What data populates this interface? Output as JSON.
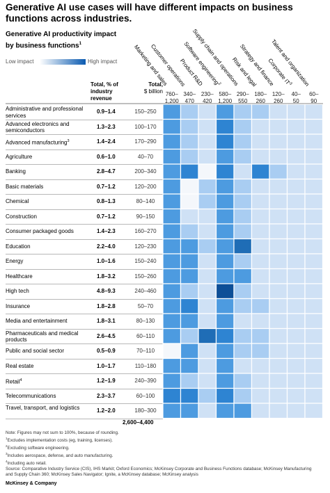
{
  "title": "Generative AI use cases will have different impacts on business functions across industries.",
  "subtitle": "Generative AI productivity impact by business functions",
  "subtitle_note_mark": "1",
  "legend": {
    "low": "Low impact",
    "high": "High impact",
    "low_color": "#ffffff",
    "high_color": "#0a5ab0"
  },
  "headers": {
    "total_revenue_title": "Total, % of industry revenue",
    "total_billion_title": "Total,",
    "total_billion_unit": "$ billion"
  },
  "total_billion_sum": "2,600–4,400",
  "chart_data": {
    "type": "heatmap",
    "title": "Generative AI productivity impact by business functions",
    "functions": [
      {
        "name": "Marketing and sales",
        "value_range": "760–1,200"
      },
      {
        "name": "Customer operations",
        "value_range": "340–470"
      },
      {
        "name": "Product R&D",
        "value_range": "230–420"
      },
      {
        "name": "Software engineering",
        "value_range": "580–1,200"
      },
      {
        "name": "Supply chain and operations",
        "value_range": "290–550"
      },
      {
        "name": "Risk and legal",
        "value_range": "180–260"
      },
      {
        "name": "Strategy and finance",
        "value_range": "120–260"
      },
      {
        "name": "Corporate IT",
        "value_range": "40–50"
      },
      {
        "name": "Talent and organization",
        "value_range": "60–90"
      }
    ],
    "function_marks": {
      "Corporate IT": "3",
      "Software engineering": "2"
    },
    "industries": [
      {
        "name": "Administrative and professional services",
        "revenue_pct": "0.9–1.4",
        "billion": "150–250",
        "impact": [
          3,
          2,
          1,
          3,
          2,
          2,
          1,
          1,
          1
        ]
      },
      {
        "name": "Advanced electronics and semiconductors",
        "revenue_pct": "1.3–2.3",
        "billion": "100–170",
        "impact": [
          3,
          2,
          1,
          4,
          2,
          1,
          1,
          1,
          1
        ]
      },
      {
        "name": "Advanced manufacturing",
        "mark": "3",
        "revenue_pct": "1.4–2.4",
        "billion": "170–290",
        "impact": [
          3,
          2,
          1,
          4,
          2,
          1,
          1,
          1,
          1
        ]
      },
      {
        "name": "Agriculture",
        "revenue_pct": "0.6–1.0",
        "billion": "40–70",
        "impact": [
          3,
          2,
          1,
          3,
          2,
          1,
          1,
          1,
          1
        ]
      },
      {
        "name": "Banking",
        "revenue_pct": "2.8–4.7",
        "billion": "200–340",
        "impact": [
          3,
          4,
          0,
          4,
          1,
          4,
          2,
          1,
          1
        ]
      },
      {
        "name": "Basic materials",
        "revenue_pct": "0.7–1.2",
        "billion": "120–200",
        "impact": [
          3,
          0,
          2,
          3,
          2,
          1,
          1,
          1,
          1
        ]
      },
      {
        "name": "Chemical",
        "revenue_pct": "0.8–1.3",
        "billion": "80–140",
        "impact": [
          3,
          0,
          2,
          3,
          2,
          1,
          1,
          1,
          1
        ]
      },
      {
        "name": "Construction",
        "revenue_pct": "0.7–1.2",
        "billion": "90–150",
        "impact": [
          3,
          1,
          1,
          3,
          2,
          1,
          1,
          1,
          1
        ]
      },
      {
        "name": "Consumer packaged goods",
        "revenue_pct": "1.4–2.3",
        "billion": "160–270",
        "impact": [
          3,
          2,
          1,
          3,
          2,
          1,
          1,
          1,
          1
        ]
      },
      {
        "name": "Education",
        "revenue_pct": "2.2–4.0",
        "billion": "120–230",
        "impact": [
          3,
          3,
          2,
          3,
          5,
          1,
          1,
          1,
          1
        ]
      },
      {
        "name": "Energy",
        "revenue_pct": "1.0–1.6",
        "billion": "150–240",
        "impact": [
          3,
          3,
          1,
          3,
          2,
          1,
          1,
          1,
          1
        ]
      },
      {
        "name": "Healthcare",
        "revenue_pct": "1.8–3.2",
        "billion": "150–260",
        "impact": [
          3,
          3,
          1,
          3,
          3,
          1,
          1,
          1,
          1
        ]
      },
      {
        "name": "High tech",
        "revenue_pct": "4.8–9.3",
        "billion": "240–460",
        "impact": [
          3,
          2,
          1,
          6,
          2,
          1,
          1,
          1,
          1
        ]
      },
      {
        "name": "Insurance",
        "revenue_pct": "1.8–2.8",
        "billion": "50–70",
        "impact": [
          3,
          4,
          1,
          3,
          2,
          2,
          1,
          1,
          1
        ]
      },
      {
        "name": "Media and entertainment",
        "revenue_pct": "1.8–3.1",
        "billion": "80–130",
        "impact": [
          3,
          3,
          1,
          3,
          1,
          1,
          1,
          1,
          1
        ]
      },
      {
        "name": "Pharmaceuticals and medical products",
        "revenue_pct": "2.6–4.5",
        "billion": "60–110",
        "impact": [
          3,
          2,
          5,
          4,
          2,
          2,
          1,
          1,
          1
        ]
      },
      {
        "name": "Public and social sector",
        "revenue_pct": "0.5–0.9",
        "billion": "70–110",
        "impact": [
          0,
          3,
          1,
          3,
          2,
          2,
          1,
          1,
          1
        ]
      },
      {
        "name": "Real estate",
        "revenue_pct": "1.0–1.7",
        "billion": "110–180",
        "impact": [
          3,
          3,
          1,
          3,
          1,
          1,
          1,
          1,
          1
        ]
      },
      {
        "name": "Retail",
        "mark": "4",
        "revenue_pct": "1.2–1.9",
        "billion": "240–390",
        "impact": [
          3,
          2,
          1,
          3,
          2,
          1,
          1,
          1,
          1
        ]
      },
      {
        "name": "Telecommunications",
        "revenue_pct": "2.3–3.7",
        "billion": "60–100",
        "impact": [
          4,
          4,
          2,
          4,
          2,
          1,
          1,
          1,
          1
        ]
      },
      {
        "name": "Travel, transport, and logistics",
        "revenue_pct": "1.2–2.0",
        "billion": "180–300",
        "impact": [
          3,
          3,
          1,
          3,
          3,
          1,
          1,
          1,
          1
        ]
      }
    ],
    "palette": [
      "#f4f7fb",
      "#cfe1f5",
      "#a9cdf2",
      "#4d9be0",
      "#2e84d2",
      "#1f6db6",
      "#0d4f97"
    ],
    "gridline_color": "#ffffff"
  },
  "notes": [
    "Note: Figures may not sum to 100%, because of rounding.",
    "Excludes implementation costs (eg, training, licenses).",
    "Excluding software engineering.",
    "Includes aerospace, defense, and auto manufacturing.",
    "Including auto retail.",
    "Source: Comparative Industry Service (CIS), IHS Markit; Oxford Economics; McKinsey Corporate and Business Functions database; McKinsey Manufacturing",
    "and Supply Chain 360; McKinsey Sales Navigator; Ignite, a McKinsey database; McKinsey analysis"
  ],
  "note_marks": [
    "",
    "1",
    "2",
    "3",
    "4",
    "",
    ""
  ],
  "footer": "McKinsey & Company"
}
